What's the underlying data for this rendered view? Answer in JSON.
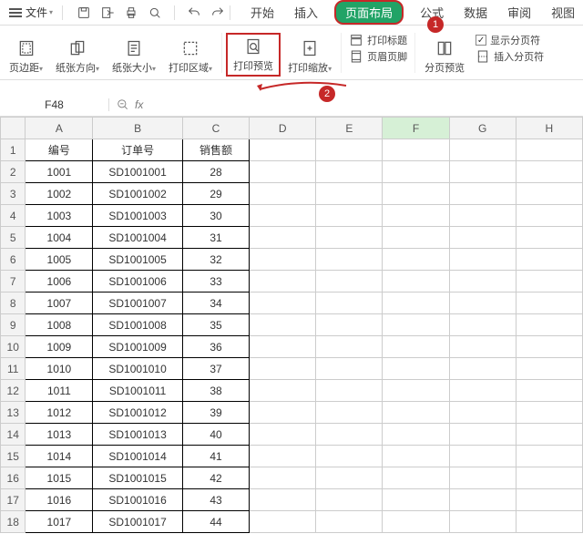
{
  "topbar": {
    "file_label": "文件",
    "dropdown_glyph": "▾"
  },
  "tabs": {
    "start": "开始",
    "insert": "插入",
    "page_layout": "页面布局",
    "formula": "公式",
    "data": "数据",
    "review": "审阅",
    "view": "视图"
  },
  "callouts": {
    "one": "1",
    "two": "2"
  },
  "ribbon": {
    "margins": "页边距",
    "orientation": "纸张方向",
    "size": "纸张大小",
    "print_area": "打印区域",
    "print_preview": "打印预览",
    "print_zoom": "打印缩放",
    "print_titles": "打印标题",
    "header_footer": "页眉页脚",
    "page_break_preview": "分页预览",
    "insert_page_break": "插入分页符",
    "show_page_break": "显示分页符",
    "checkbox_glyph": "✓"
  },
  "namebox": "F48",
  "fx_label": "fx",
  "columns": [
    "A",
    "B",
    "C",
    "D",
    "E",
    "F",
    "G",
    "H"
  ],
  "active_col": "F",
  "headers": {
    "col1": "编号",
    "col2": "订单号",
    "col3": "销售额"
  },
  "rows": [
    {
      "n": "1",
      "a": "编号",
      "b": "订单号",
      "c": "销售额"
    },
    {
      "n": "2",
      "a": "1001",
      "b": "SD1001001",
      "c": "28"
    },
    {
      "n": "3",
      "a": "1002",
      "b": "SD1001002",
      "c": "29"
    },
    {
      "n": "4",
      "a": "1003",
      "b": "SD1001003",
      "c": "30"
    },
    {
      "n": "5",
      "a": "1004",
      "b": "SD1001004",
      "c": "31"
    },
    {
      "n": "6",
      "a": "1005",
      "b": "SD1001005",
      "c": "32"
    },
    {
      "n": "7",
      "a": "1006",
      "b": "SD1001006",
      "c": "33"
    },
    {
      "n": "8",
      "a": "1007",
      "b": "SD1001007",
      "c": "34"
    },
    {
      "n": "9",
      "a": "1008",
      "b": "SD1001008",
      "c": "35"
    },
    {
      "n": "10",
      "a": "1009",
      "b": "SD1001009",
      "c": "36"
    },
    {
      "n": "11",
      "a": "1010",
      "b": "SD1001010",
      "c": "37"
    },
    {
      "n": "12",
      "a": "1011",
      "b": "SD1001011",
      "c": "38"
    },
    {
      "n": "13",
      "a": "1012",
      "b": "SD1001012",
      "c": "39"
    },
    {
      "n": "14",
      "a": "1013",
      "b": "SD1001013",
      "c": "40"
    },
    {
      "n": "15",
      "a": "1014",
      "b": "SD1001014",
      "c": "41"
    },
    {
      "n": "16",
      "a": "1015",
      "b": "SD1001015",
      "c": "42"
    },
    {
      "n": "17",
      "a": "1016",
      "b": "SD1001016",
      "c": "43"
    },
    {
      "n": "18",
      "a": "1017",
      "b": "SD1001017",
      "c": "44"
    }
  ],
  "colors": {
    "accent": "#21a366",
    "callout": "#c62828",
    "grid_border": "#cccccc",
    "data_border": "#000000",
    "header_bg": "#f3f3f3"
  }
}
